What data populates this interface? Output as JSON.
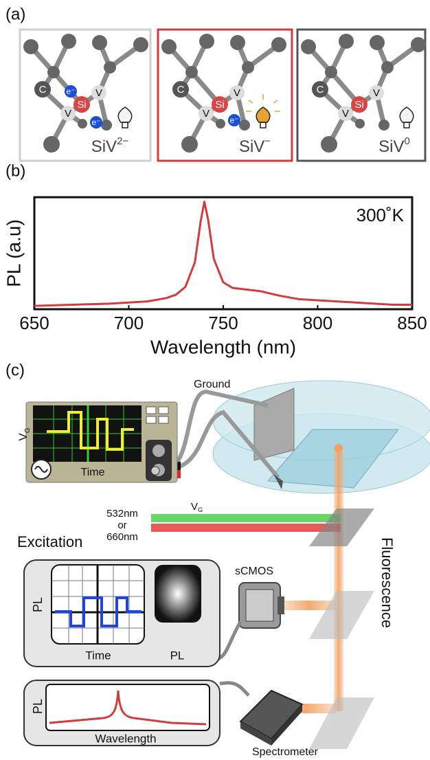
{
  "panel_labels": [
    "(a)",
    "(b)",
    "(c)"
  ],
  "panel_a": {
    "states": [
      {
        "name": "SiV",
        "charge": "2−",
        "atoms": [
          "C",
          "V",
          "Si",
          "V"
        ],
        "electrons": [
          "e⁻",
          "e⁻"
        ]
      },
      {
        "name": "SiV",
        "charge": "−",
        "atoms": [
          "C",
          "V",
          "Si",
          "V"
        ],
        "electrons": [
          "e⁻"
        ]
      },
      {
        "name": "SiV",
        "charge": "0",
        "atoms": [
          "C",
          "V",
          "Si",
          "V"
        ],
        "electrons": []
      }
    ]
  },
  "chart_data": {
    "type": "line",
    "y_label": "PL (a.u)",
    "x_label": "Wavelength (nm)",
    "annotation": "300˚K",
    "x": [
      650,
      670,
      690,
      710,
      720,
      725,
      730,
      735,
      738,
      740,
      742,
      745,
      750,
      755,
      760,
      770,
      780,
      790,
      800,
      810,
      820,
      830,
      840,
      850
    ],
    "series": [
      {
        "color": "#d23c3c",
        "values": [
          0.03,
          0.04,
          0.05,
          0.07,
          0.1,
          0.13,
          0.2,
          0.42,
          0.78,
          0.96,
          0.8,
          0.45,
          0.24,
          0.19,
          0.18,
          0.16,
          0.12,
          0.09,
          0.08,
          0.07,
          0.06,
          0.05,
          0.04,
          0.04
        ]
      }
    ],
    "xlim": [
      650,
      850
    ],
    "xticks": [
      650,
      700,
      750,
      800,
      850
    ],
    "ylim": [
      0,
      1
    ]
  },
  "panel_c": {
    "ground": "Ground",
    "scope": {
      "axis_main": "V",
      "axis_sub": "G",
      "time": "Time"
    },
    "gate": {
      "main": "V",
      "sub": "G"
    },
    "excitation": "Excitation",
    "lasers": [
      "532nm",
      "or",
      "660nm"
    ],
    "camera": "sCMOS",
    "fluorescence": "Fluorescence",
    "imaging_box": {
      "y_label": "PL",
      "time": "Time",
      "image_label": "PL"
    },
    "spectrum_box": {
      "y_label": "PL",
      "x_label": "Wavelength"
    },
    "spectrometer": "Spectrometer"
  }
}
